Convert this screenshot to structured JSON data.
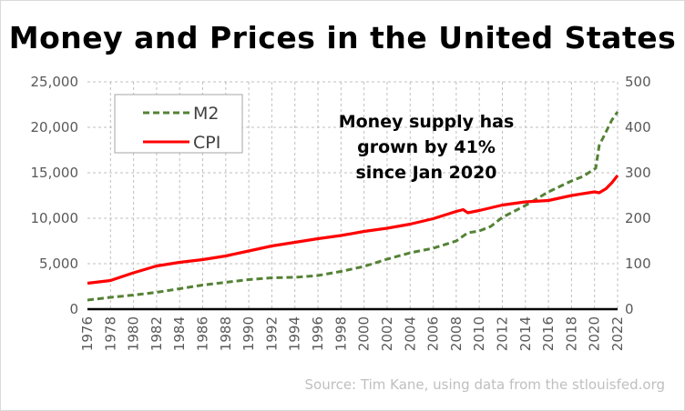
{
  "chart_data": {
    "type": "line",
    "title": "Money and Prices in the United States",
    "source": "Source: Tim Kane, using data from the stlouisfed.org",
    "annotation": [
      "Money supply has",
      "grown by 41%",
      "since Jan 2020"
    ],
    "legend_position": "top-left",
    "grid": true,
    "x_ticks": [
      "1976",
      "1978",
      "1980",
      "1982",
      "1984",
      "1986",
      "1988",
      "1990",
      "1992",
      "1994",
      "1996",
      "1998",
      "2000",
      "2002",
      "2004",
      "2006",
      "2008",
      "2010",
      "2012",
      "2014",
      "2016",
      "2018",
      "2020",
      "2022"
    ],
    "xlim": [
      1976,
      2022
    ],
    "y_left": {
      "lim": [
        0,
        25000
      ],
      "ticks": [
        "0",
        "5,000",
        "10,000",
        "15,000",
        "20,000",
        "25,000"
      ]
    },
    "y_right": {
      "lim": [
        0,
        500
      ],
      "ticks": [
        "0",
        "100",
        "200",
        "300",
        "400",
        "500"
      ]
    },
    "series": [
      {
        "name": "M2",
        "axis": "left",
        "color": "#548235",
        "style": "dashed",
        "x": [
          1976,
          1978,
          1980,
          1982,
          1984,
          1986,
          1988,
          1990,
          1992,
          1994,
          1996,
          1998,
          2000,
          2002,
          2004,
          2006,
          2008,
          2009,
          2010,
          2011,
          2012,
          2014,
          2016,
          2018,
          2019,
          2020.1,
          2020.4,
          2021,
          2021.5,
          2022
        ],
        "y": [
          1000,
          1300,
          1550,
          1850,
          2250,
          2650,
          2950,
          3250,
          3450,
          3500,
          3700,
          4150,
          4700,
          5500,
          6200,
          6700,
          7500,
          8400,
          8600,
          9100,
          10100,
          11400,
          12900,
          14100,
          14600,
          15500,
          18000,
          19500,
          20800,
          21700
        ]
      },
      {
        "name": "CPI",
        "axis": "right",
        "color": "#ff0000",
        "style": "solid",
        "x": [
          1976,
          1978,
          1980,
          1982,
          1984,
          1986,
          1988,
          1990,
          1992,
          1994,
          1996,
          1998,
          2000,
          2002,
          2004,
          2006,
          2008,
          2008.6,
          2009,
          2010,
          2012,
          2014,
          2016,
          2018,
          2020,
          2020.4,
          2021,
          2021.5,
          2022
        ],
        "y": [
          57,
          63,
          80,
          95,
          103,
          109,
          117,
          128,
          139,
          147,
          155,
          162,
          171,
          178,
          187,
          199,
          215,
          219,
          212,
          217,
          229,
          236,
          239,
          250,
          258,
          256,
          265,
          278,
          294
        ]
      }
    ]
  }
}
